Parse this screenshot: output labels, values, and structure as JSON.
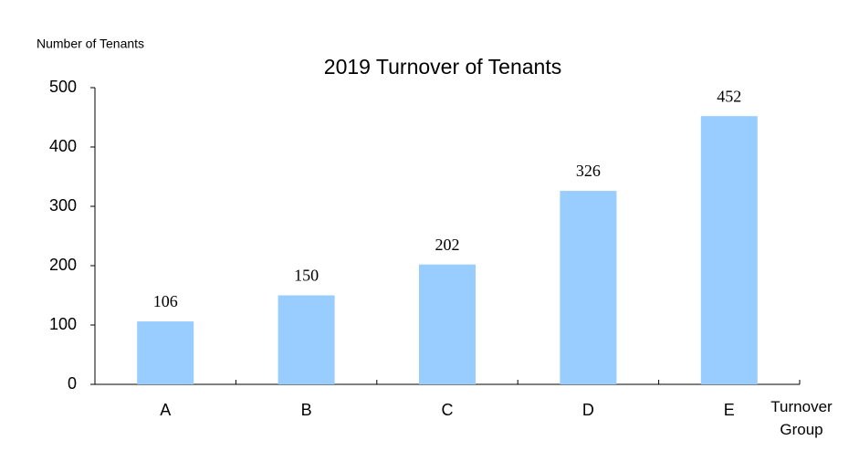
{
  "chart_data": {
    "type": "bar",
    "title": "2019 Turnover of Tenants",
    "y_label": "Number of Tenants",
    "x_label": "Turnover Group",
    "categories": [
      "A",
      "B",
      "C",
      "D",
      "E"
    ],
    "values": [
      106,
      150,
      202,
      326,
      452
    ],
    "color": "#99ccff",
    "ylim": [
      0,
      500
    ],
    "yticks": [
      0,
      100,
      200,
      300,
      400,
      500
    ],
    "grid": false
  }
}
